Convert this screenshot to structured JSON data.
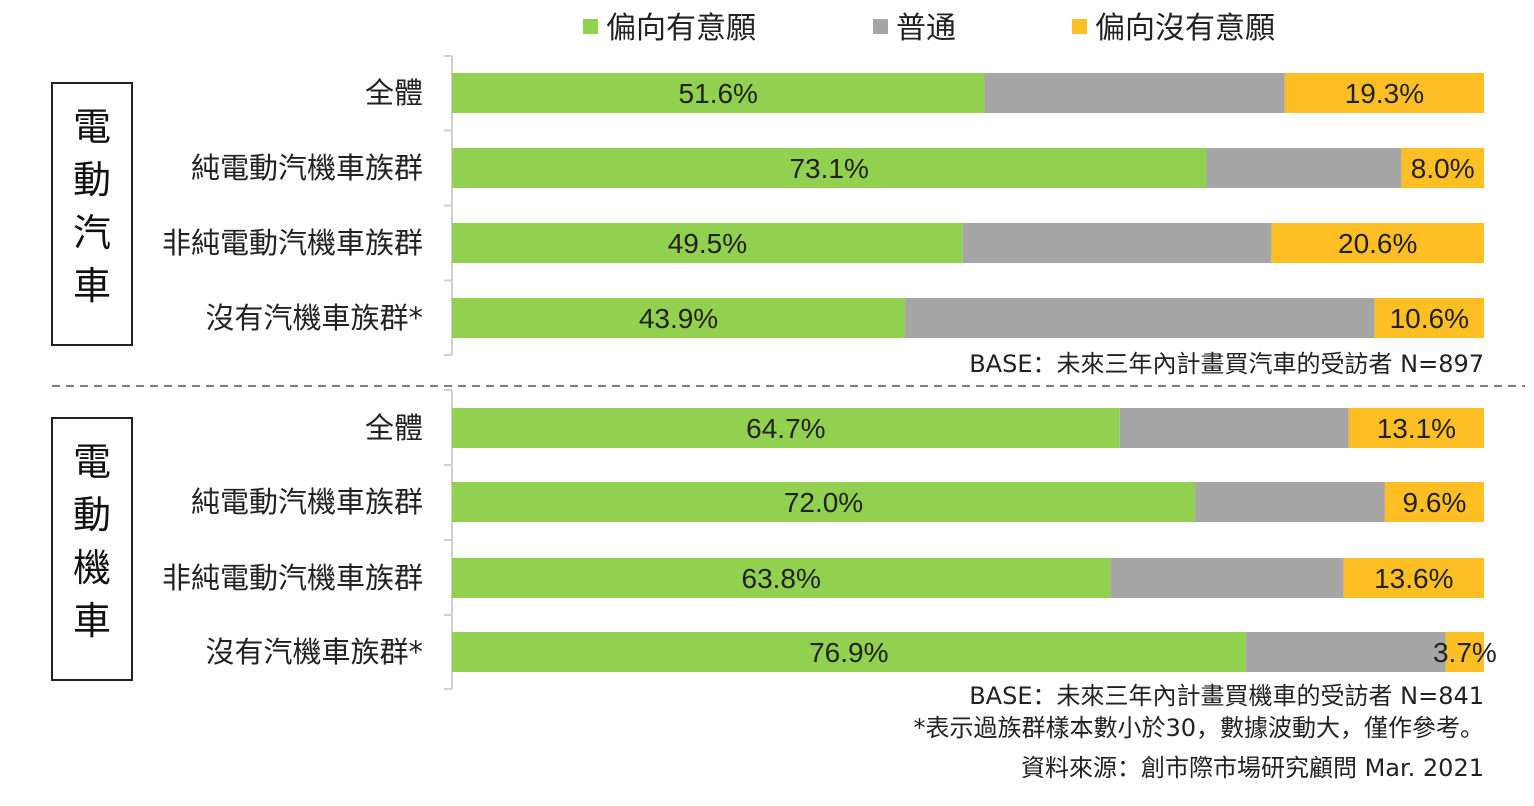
{
  "chart_data": {
    "type": "bar",
    "orientation": "horizontal",
    "stacked": true,
    "percent": true,
    "xlim": [
      0,
      100
    ],
    "legend_position": "top",
    "legend": [
      "偏向有意願",
      "普通",
      "偏向沒有意願"
    ],
    "colors": {
      "偏向有意願": "#92d050",
      "普通": "#a6a6a6",
      "偏向沒有意願": "#fdbf24"
    },
    "groups": [
      {
        "title": "電動汽車",
        "categories": [
          "全體",
          "純電動汽機車族群",
          "非純電動汽機車族群",
          "沒有汽機車族群*"
        ],
        "series": [
          {
            "name": "偏向有意願",
            "values": [
              51.6,
              73.1,
              49.5,
              43.9
            ],
            "labels": [
              "51.6%",
              "73.1%",
              "49.5%",
              "43.9%"
            ]
          },
          {
            "name": "普通",
            "values": [
              29.1,
              18.9,
              29.9,
              45.5
            ],
            "labels": []
          },
          {
            "name": "偏向沒有意願",
            "values": [
              19.3,
              8.0,
              20.6,
              10.6
            ],
            "labels": [
              "19.3%",
              "8.0%",
              "20.6%",
              "10.6%"
            ]
          }
        ],
        "base_note": "BASE：未來三年內計畫買汽車的受訪者 N=897"
      },
      {
        "title": "電動機車",
        "categories": [
          "全體",
          "純電動汽機車族群",
          "非純電動汽機車族群",
          "沒有汽機車族群*"
        ],
        "series": [
          {
            "name": "偏向有意願",
            "values": [
              64.7,
              72.0,
              63.8,
              76.9
            ],
            "labels": [
              "64.7%",
              "72.0%",
              "63.8%",
              "76.9%"
            ]
          },
          {
            "name": "普通",
            "values": [
              22.2,
              18.4,
              22.6,
              19.4
            ],
            "labels": []
          },
          {
            "name": "偏向沒有意願",
            "values": [
              13.1,
              9.6,
              13.6,
              3.7
            ],
            "labels": [
              "13.1%",
              "9.6%",
              "13.6%",
              "3.7%"
            ]
          }
        ],
        "base_note": "BASE：未來三年內計畫買機車的受訪者 N=841"
      }
    ],
    "footnotes": [
      "*表示過族群樣本數小於30，數據波動大，僅作參考。",
      "資料來源：創市際市場研究顧問 Mar. 2021"
    ]
  }
}
